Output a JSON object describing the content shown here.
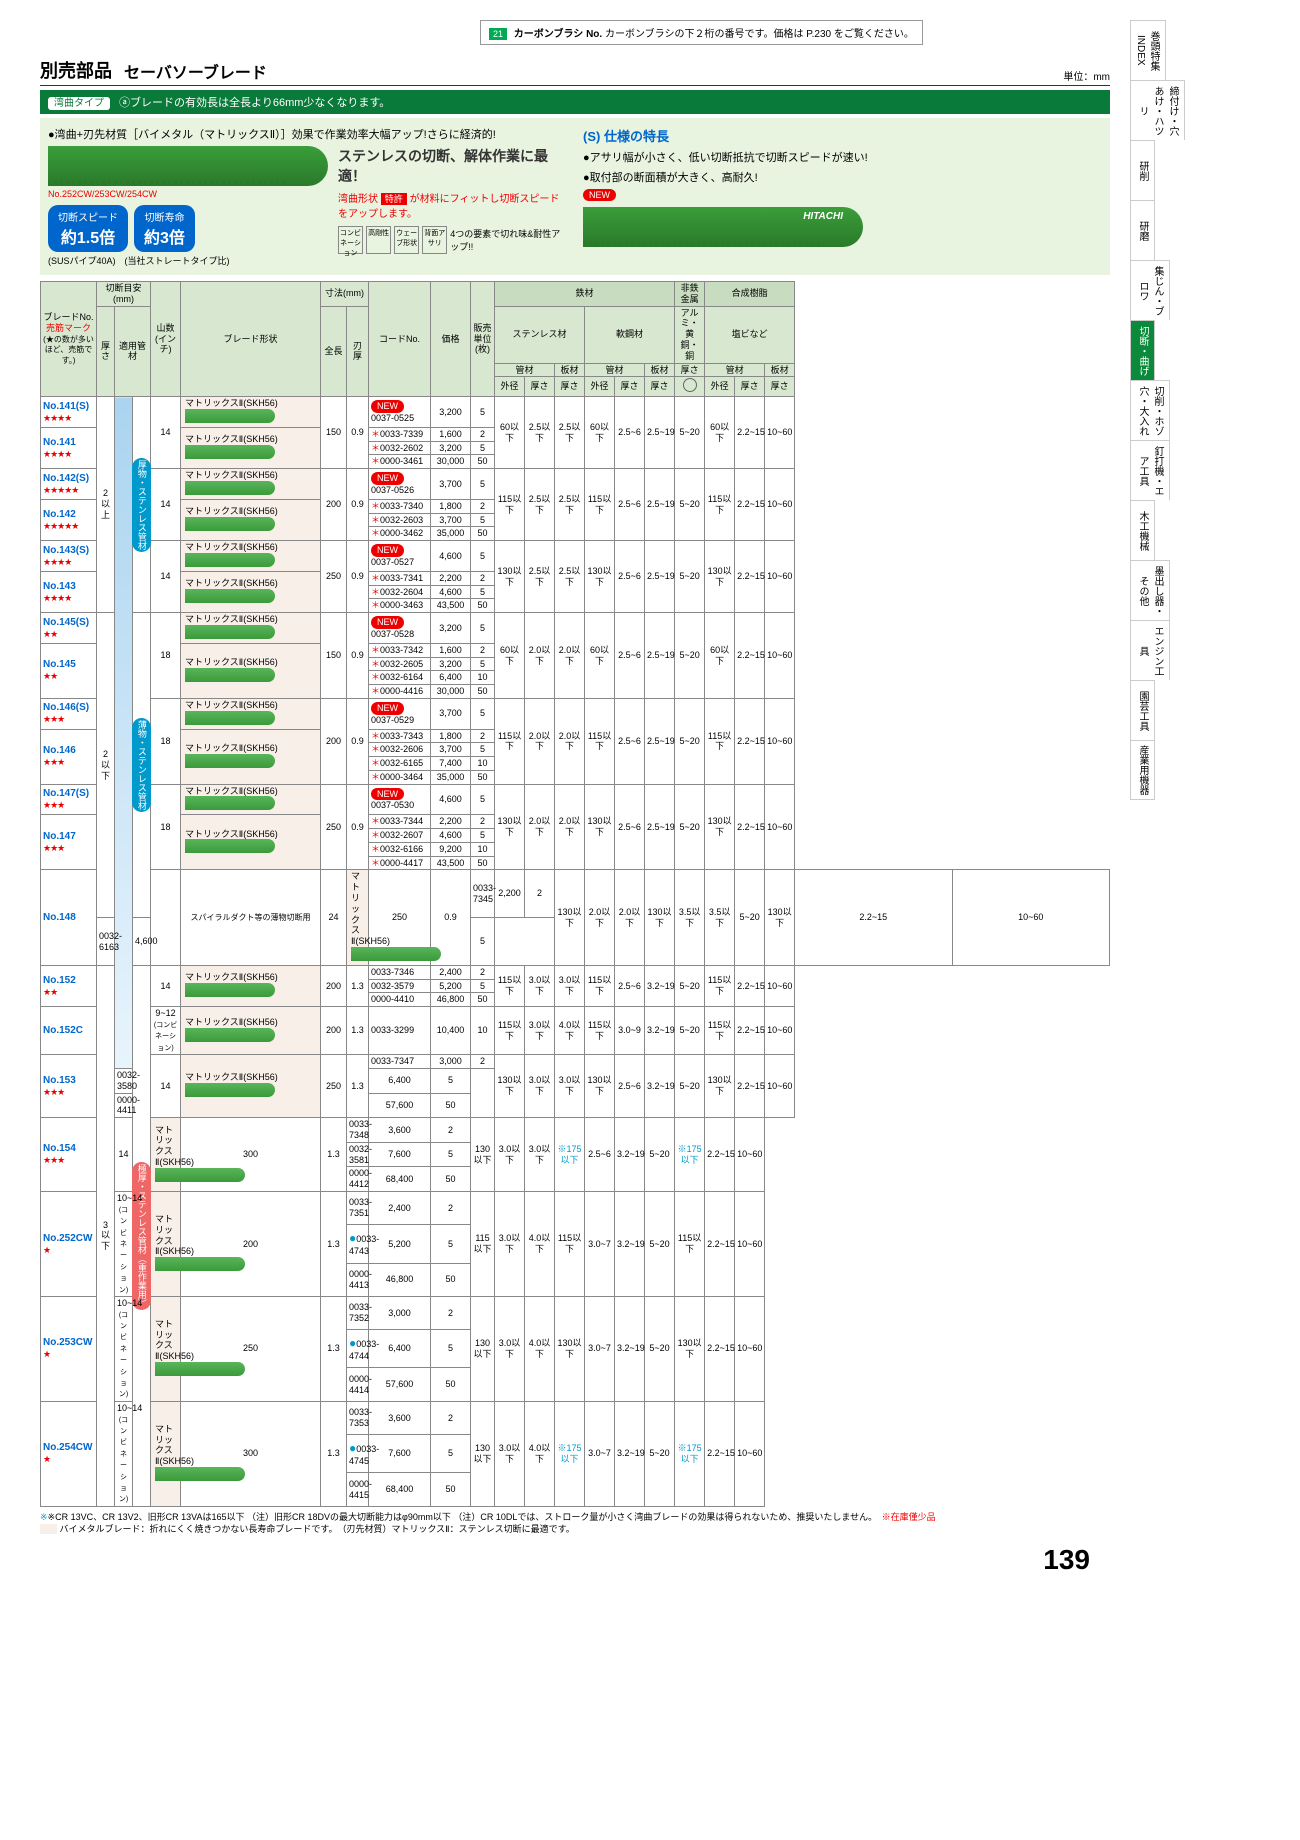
{
  "top_note": {
    "badge": "21",
    "label": "カーボンブラシ No.",
    "text": "カーボンブラシの下２桁の番号です。価格は P.230 をご覧ください。"
  },
  "header": {
    "parts": "別売部品",
    "title": "セーバソーブレード",
    "unit": "単位：mm"
  },
  "green_bar": {
    "tag": "湾曲タイプ",
    "text": "ⓐブレードの有効長は全長より66mm少なくなります。"
  },
  "hero": {
    "bullet1": "●湾曲+刃先材質［バイメタル（マトリックスⅡ）］効果で作業効率大幅アップ!さらに経済的!",
    "model_label": "No.252CW/253CW/254CW",
    "stainless": "ステンレスの切断、解体作業に最適！",
    "curve_label": "湾曲形状",
    "patent": "特許",
    "patent_text": "が材料にフィットし切断スピードをアップします。",
    "speed_label": "切断スピード",
    "speed_val": "約1.5倍",
    "speed_sub": "(SUSパイプ40A)",
    "life_label": "切断寿命",
    "life_val": "約3倍",
    "life_sub": "(当社ストレートタイプ比)",
    "icons_note": "4つの要素で切れ味&耐性アップ!!",
    "icons": [
      "コンビネーション",
      "高剛性",
      "ウェーブ形状",
      "背面アサリ"
    ],
    "s_title": "(S) 仕様の特長",
    "s_bullet1": "●アサリ幅が小さく、低い切断抵抗で切断スピードが速い!",
    "s_bullet2": "●取付部の断面積が大きく、高耐久!",
    "new": "NEW",
    "brand": "HITACHI"
  },
  "thead": {
    "blade_no": "ブレードNo.",
    "mark": "売筋マーク",
    "mark_note": "(★の数が多いほど、売筋です。)",
    "cut_guide": "切断目安(mm)",
    "thick": "厚さ",
    "pipe": "適用管材",
    "teeth": "山数(インチ)",
    "shape": "ブレード形状",
    "dim": "寸法(mm)",
    "len": "全長",
    "th": "刃厚",
    "code": "コードNo.",
    "price": "価格",
    "qty": "販売単位(枚)",
    "iron": "鉄材",
    "nonfer": "非鉄金属",
    "resin": "合成樹脂",
    "sus_mat": "ステンレス材",
    "soft": "軟鋼材",
    "al": "アルミ・黄銅・銅",
    "pvc": "塩ビなど",
    "pipemat": "管材",
    "board": "板材",
    "od": "外径",
    "t": "厚さ"
  },
  "category_labels": {
    "thick_sus": "厚物・ステンレス管材",
    "thin_sus": "薄物・ステンレス管材",
    "spiral": "スパイラルダクト等の薄物切断用",
    "heavy": "極厚・ステンレス管材（重作業用）"
  },
  "cut_ranges": {
    "over2": "2以上",
    "under2": "2以下",
    "under3": "3以下"
  },
  "specs": {
    "r1": {
      "od1": "60以下",
      "t1": "2.5以下",
      "t2": "2.5以下",
      "od2": "60以下",
      "t3": "2.5~6",
      "t4": "2.5~19",
      "t5": "5~20",
      "od3": "60以下",
      "t6": "2.2~15",
      "t7": "10~60"
    },
    "r2": {
      "od1": "115以下",
      "t1": "2.5以下",
      "t2": "2.5以下",
      "od2": "115以下",
      "t3": "2.5~6",
      "t4": "2.5~19",
      "t5": "5~20",
      "od3": "115以下",
      "t6": "2.2~15",
      "t7": "10~60"
    },
    "r3": {
      "od1": "130以下",
      "t1": "2.5以下",
      "t2": "2.5以下",
      "od2": "130以下",
      "t3": "2.5~6",
      "t4": "2.5~19",
      "t5": "5~20",
      "od3": "130以下",
      "t6": "2.2~15",
      "t7": "10~60"
    },
    "r4": {
      "od1": "60以下",
      "t1": "2.0以下",
      "t2": "2.0以下",
      "od2": "60以下",
      "t3": "2.5~6",
      "t4": "2.5~19",
      "t5": "5~20",
      "od3": "60以下",
      "t6": "2.2~15",
      "t7": "10~60"
    },
    "r5": {
      "od1": "115以下",
      "t1": "2.0以下",
      "t2": "2.0以下",
      "od2": "115以下",
      "t3": "2.5~6",
      "t4": "2.5~19",
      "t5": "5~20",
      "od3": "115以下",
      "t6": "2.2~15",
      "t7": "10~60"
    },
    "r6": {
      "od1": "130以下",
      "t1": "2.0以下",
      "t2": "2.0以下",
      "od2": "130以下",
      "t3": "2.5~6",
      "t4": "2.5~19",
      "t5": "5~20",
      "od3": "130以下",
      "t6": "2.2~15",
      "t7": "10~60"
    },
    "r7": {
      "od1": "130以下",
      "t1": "2.0以下",
      "t2": "2.0以下",
      "od2": "130以下",
      "t3": "3.5以下",
      "t4": "3.5以下",
      "t5": "5~20",
      "od3": "130以下",
      "t6": "2.2~15",
      "t7": "10~60"
    },
    "r8": {
      "od1": "115以下",
      "t1": "3.0以下",
      "t2": "3.0以下",
      "od2": "115以下",
      "t3": "2.5~6",
      "t4": "3.2~19",
      "t5": "5~20",
      "od3": "115以下",
      "t6": "2.2~15",
      "t7": "10~60"
    },
    "r9": {
      "od1": "115以下",
      "t1": "3.0以下",
      "t2": "4.0以下",
      "od2": "115以下",
      "t3": "3.0~9",
      "t4": "3.2~19",
      "t5": "5~20",
      "od3": "115以下",
      "t6": "2.2~15",
      "t7": "10~60"
    },
    "r10": {
      "od1": "130以下",
      "t1": "3.0以下",
      "t2": "3.0以下",
      "od2": "130以下",
      "t3": "2.5~6",
      "t4": "3.2~19",
      "t5": "5~20",
      "od3": "130以下",
      "t6": "2.2~15",
      "t7": "10~60"
    },
    "r11": {
      "od1": "130以下",
      "t1": "3.0以下",
      "t2": "3.0以下",
      "od2": "※175以下",
      "t3": "2.5~6",
      "t4": "3.2~19",
      "t5": "5~20",
      "od3": "※175以下",
      "t6": "2.2~15",
      "t7": "10~60"
    },
    "r12": {
      "od1": "115以下",
      "t1": "3.0以下",
      "t2": "4.0以下",
      "od2": "115以下",
      "t3": "3.0~7",
      "t4": "3.2~19",
      "t5": "5~20",
      "od3": "115以下",
      "t6": "2.2~15",
      "t7": "10~60"
    },
    "r13": {
      "od1": "130以下",
      "t1": "3.0以下",
      "t2": "4.0以下",
      "od2": "130以下",
      "t3": "3.0~7",
      "t4": "3.2~19",
      "t5": "5~20",
      "od3": "130以下",
      "t6": "2.2~15",
      "t7": "10~60"
    },
    "r14": {
      "od1": "130以下",
      "t1": "3.0以下",
      "t2": "4.0以下",
      "od2": "※175以下",
      "t3": "3.0~7",
      "t4": "3.2~19",
      "t5": "5~20",
      "od3": "※175以下",
      "t6": "2.2~15",
      "t7": "10~60"
    }
  },
  "shape": "マトリックスⅡ(SKH56)",
  "footnotes": {
    "f1": "※CR 13VC、CR 13V2、旧形CR 13VAは165以下 （注）旧形CR 18DVの最大切断能力はφ90mm以下 （注）CR 10DLでは、ストローク量が小さく湾曲ブレードの効果は得られないため、推奨いたしません。",
    "f1b": "※在庫僅少品",
    "f2": "バイメタルブレード：折れにくく焼きつかない長寿命ブレードです。　（刃先材質）マトリックスⅡ：ステンレス切断に最適です。"
  },
  "page_num": "139",
  "tabs": [
    "巻頭特集 INDEX",
    "締付け・穴あけ・ハツリ",
    "研削",
    "研磨",
    "集じん・ブロワ",
    "切断・曲げ",
    "切削・ホゾ穴・大入れ",
    "釘打機・エア工具",
    "木工機械",
    "墨出し器・その他",
    "エンジン工具",
    "園芸工具",
    "産業用機器"
  ]
}
